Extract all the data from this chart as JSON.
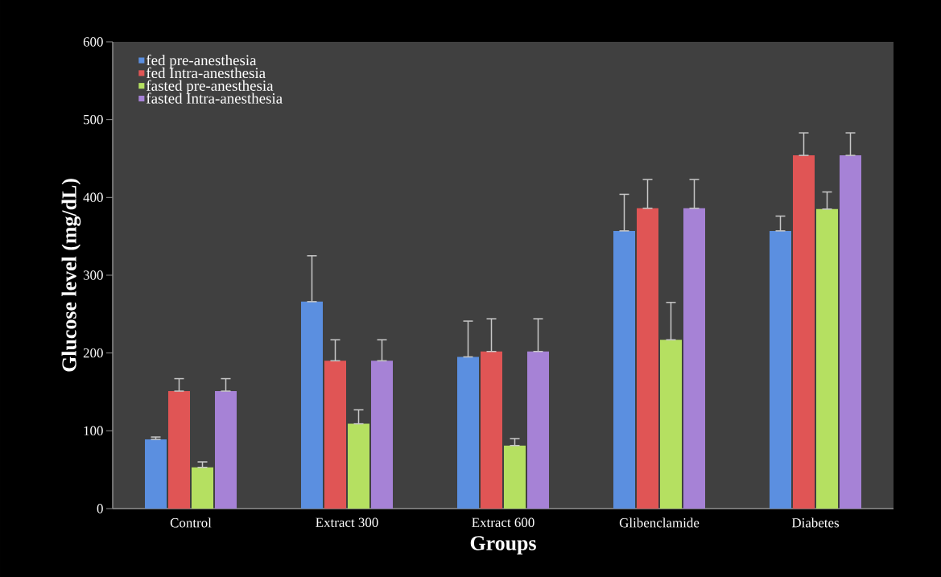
{
  "chart_data": {
    "type": "bar",
    "xlabel": "Groups",
    "ylabel": "Glucose level (mg/dL)",
    "categories": [
      "Control",
      "Extract 300",
      "Extract 600",
      "Glibenclamide",
      "Diabetes"
    ],
    "series": [
      {
        "name": "fed pre-anesthesia",
        "color": "#5b8fe0",
        "values": [
          89,
          266,
          195,
          357,
          357
        ],
        "errors": [
          [
            89,
            92
          ],
          [
            266,
            325
          ],
          [
            195,
            241
          ],
          [
            357,
            404
          ],
          [
            357,
            376
          ]
        ]
      },
      {
        "name": "fed Intra-anesthesia",
        "color": "#e05555",
        "values": [
          151,
          190,
          202,
          386,
          454
        ],
        "errors": [
          [
            151,
            167
          ],
          [
            190,
            217
          ],
          [
            202,
            244
          ],
          [
            386,
            423
          ],
          [
            454,
            483
          ]
        ]
      },
      {
        "name": "fasted pre-anesthesia",
        "color": "#b5e061",
        "values": [
          53,
          109,
          81,
          217,
          385
        ],
        "errors": [
          [
            53,
            60
          ],
          [
            109,
            127
          ],
          [
            81,
            90
          ],
          [
            217,
            265
          ],
          [
            385,
            407
          ]
        ]
      },
      {
        "name": "fasted Intra-anesthesia",
        "color": "#a682d6",
        "values": [
          151,
          190,
          202,
          386,
          454
        ],
        "errors": [
          [
            151,
            167
          ],
          [
            190,
            217
          ],
          [
            202,
            244
          ],
          [
            386,
            423
          ],
          [
            454,
            483
          ]
        ]
      }
    ],
    "ylim": [
      0,
      600
    ],
    "yticks": [
      0,
      100,
      200,
      300,
      400,
      500,
      600
    ],
    "legend": "top left",
    "grid": false
  }
}
